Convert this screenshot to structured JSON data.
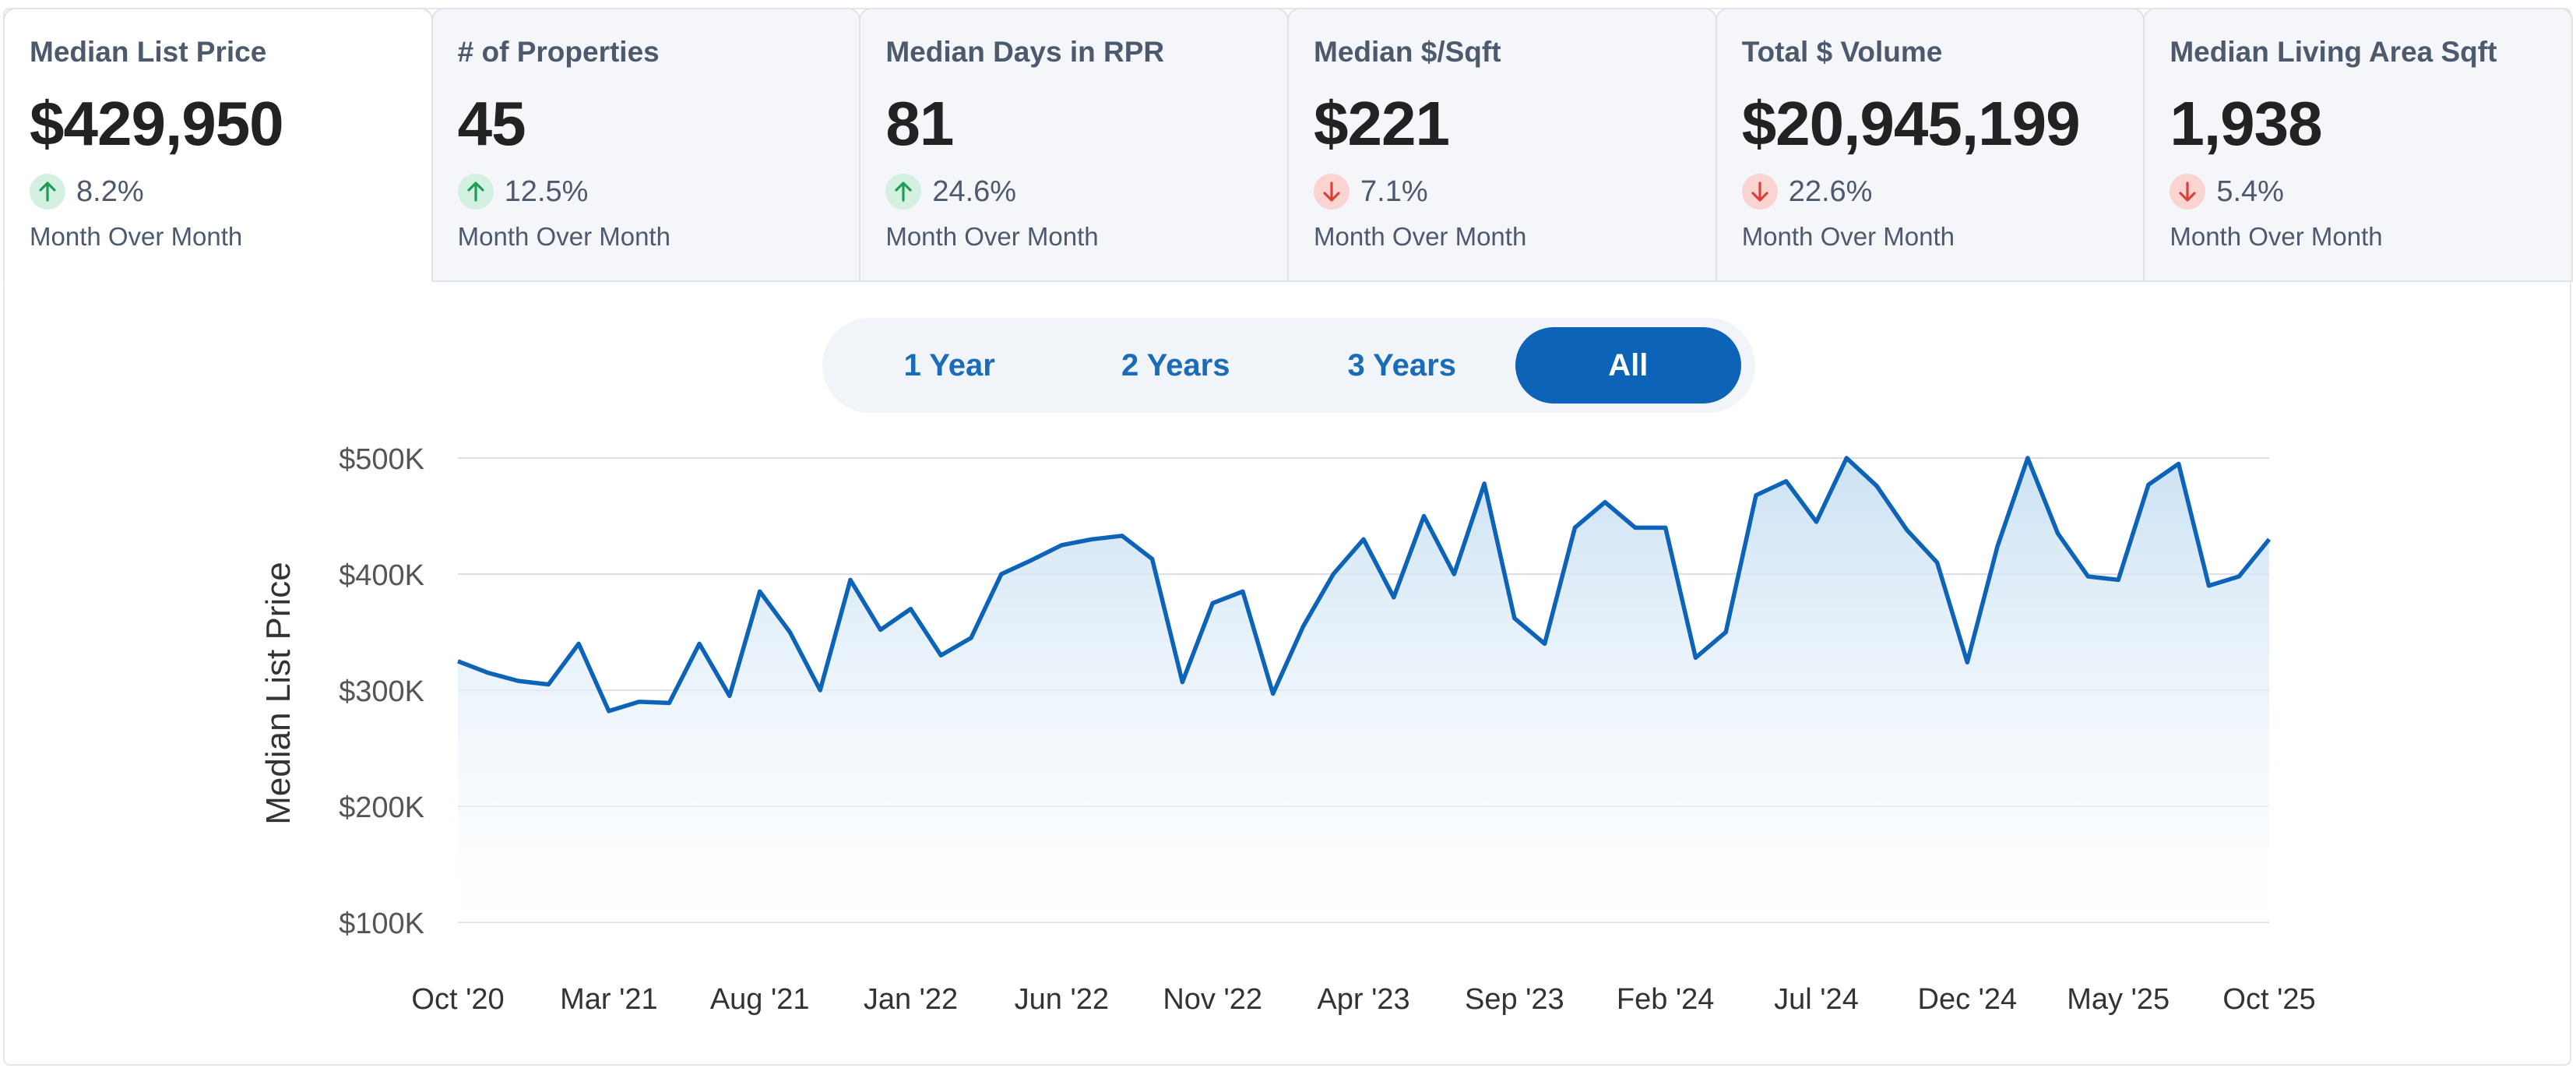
{
  "metrics": [
    {
      "title": "Median List Price",
      "value": "$429,950",
      "direction": "up",
      "change": "8.2%",
      "period": "Month Over Month",
      "active": true
    },
    {
      "title": "# of Properties",
      "value": "45",
      "direction": "up",
      "change": "12.5%",
      "period": "Month Over Month",
      "active": false
    },
    {
      "title": "Median Days in RPR",
      "value": "81",
      "direction": "up",
      "change": "24.6%",
      "period": "Month Over Month",
      "active": false
    },
    {
      "title": "Median $/Sqft",
      "value": "$221",
      "direction": "down",
      "change": "7.1%",
      "period": "Month Over Month",
      "active": false
    },
    {
      "title": "Total $ Volume",
      "value": "$20,945,199",
      "direction": "down",
      "change": "22.6%",
      "period": "Month Over Month",
      "active": false
    },
    {
      "title": "Median Living Area Sqft",
      "value": "1,938",
      "direction": "down",
      "change": "5.4%",
      "period": "Month Over Month",
      "active": false
    }
  ],
  "ranges": [
    {
      "label": "1 Year",
      "active": false
    },
    {
      "label": "2 Years",
      "active": false
    },
    {
      "label": "3 Years",
      "active": false
    },
    {
      "label": "All",
      "active": true
    }
  ],
  "colors": {
    "line": "#0c63b8",
    "up_arrow": "#1f9d57",
    "down_arrow": "#d9423a"
  },
  "chart_data": {
    "type": "area",
    "ylabel": "Median List Price",
    "xlabel": "",
    "ylim": [
      100000,
      500000
    ],
    "yticks": [
      100000,
      200000,
      300000,
      400000,
      500000
    ],
    "ytick_labels": [
      "$100K",
      "$200K",
      "$300K",
      "$400K",
      "$500K"
    ],
    "xticks": [
      "Oct '20",
      "Mar '21",
      "Aug '21",
      "Jan '22",
      "Jun '22",
      "Nov '22",
      "Apr '23",
      "Sep '23",
      "Feb '24",
      "Jul '24",
      "Dec '24",
      "May '25",
      "Oct '25"
    ],
    "grid": true,
    "x": [
      "2020-10",
      "2020-11",
      "2020-12",
      "2021-01",
      "2021-02",
      "2021-03",
      "2021-04",
      "2021-05",
      "2021-06",
      "2021-07",
      "2021-08",
      "2021-09",
      "2021-10",
      "2021-11",
      "2021-12",
      "2022-01",
      "2022-02",
      "2022-03",
      "2022-04",
      "2022-05",
      "2022-06",
      "2022-07",
      "2022-08",
      "2022-09",
      "2022-10",
      "2022-11",
      "2022-12",
      "2023-01",
      "2023-02",
      "2023-03",
      "2023-04",
      "2023-05",
      "2023-06",
      "2023-07",
      "2023-08",
      "2023-09",
      "2023-10",
      "2023-11",
      "2023-12",
      "2024-01",
      "2024-02",
      "2024-03",
      "2024-04",
      "2024-05",
      "2024-06",
      "2024-07",
      "2024-08",
      "2024-09",
      "2024-10",
      "2024-11",
      "2024-12",
      "2025-01",
      "2025-02",
      "2025-03",
      "2025-04",
      "2025-05",
      "2025-06",
      "2025-07",
      "2025-08",
      "2025-09",
      "2025-10"
    ],
    "series": [
      {
        "values": [
          325000,
          315000,
          308000,
          305000,
          340000,
          282000,
          290000,
          289000,
          340000,
          295000,
          385000,
          350000,
          300000,
          395000,
          352000,
          370000,
          330000,
          345000,
          400000,
          412000,
          425000,
          430000,
          433000,
          413000,
          307000,
          375000,
          385000,
          297000,
          355000,
          400000,
          430000,
          380000,
          450000,
          400000,
          478000,
          362000,
          340000,
          440000,
          462000,
          440000,
          440000,
          328000,
          350000,
          468000,
          480000,
          445000,
          500000,
          476000,
          438000,
          410000,
          324000,
          424000,
          500000,
          435000,
          398000,
          395000,
          477000,
          495000,
          390000,
          398000,
          430000
        ]
      }
    ]
  }
}
